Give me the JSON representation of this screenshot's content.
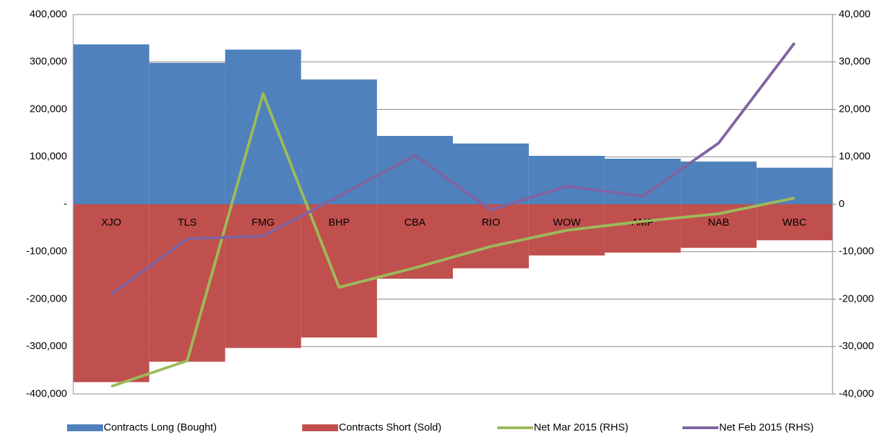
{
  "chart_data": {
    "type": "bar",
    "categories": [
      "XJO",
      "TLS",
      "FMG",
      "BHP",
      "CBA",
      "RIO",
      "WOW",
      "AMP",
      "NAB",
      "WBC"
    ],
    "series": [
      {
        "name": "Contracts Long (Bought)",
        "type": "bar",
        "color": "#4f81bd",
        "values": [
          337000,
          298000,
          326000,
          263000,
          144000,
          128000,
          102000,
          96000,
          90000,
          77000
        ]
      },
      {
        "name": "Contracts Short (Sold)",
        "type": "bar",
        "color": "#c0504d",
        "values": [
          -375000,
          -332000,
          -303000,
          -281000,
          -157000,
          -135000,
          -108000,
          -102000,
          -92000,
          -76000
        ]
      },
      {
        "name": "Net Mar 2015 (RHS)",
        "type": "line",
        "axis": "y2",
        "color": "#9bbb59",
        "values": [
          -38400,
          -33000,
          23300,
          -17500,
          -13400,
          -8900,
          -5500,
          -3600,
          -2000,
          1300
        ]
      },
      {
        "name": "Net Feb 2015 (RHS)",
        "type": "line",
        "axis": "y2",
        "color": "#8064a2",
        "values": [
          -19000,
          -7300,
          -6700,
          1700,
          10300,
          -1200,
          3800,
          1700,
          12900,
          34000
        ]
      }
    ],
    "ylim": [
      -400000,
      400000
    ],
    "yticks": [
      {
        "value": -400000,
        "label": "-400,000"
      },
      {
        "value": -300000,
        "label": "-300,000"
      },
      {
        "value": -200000,
        "label": "-200,000"
      },
      {
        "value": -100000,
        "label": "-100,000"
      },
      {
        "value": 0,
        "label": "-"
      },
      {
        "value": 100000,
        "label": "100,000"
      },
      {
        "value": 200000,
        "label": "200,000"
      },
      {
        "value": 300000,
        "label": "300,000"
      },
      {
        "value": 400000,
        "label": "400,000"
      }
    ],
    "y2lim": [
      -40000,
      40000
    ],
    "y2ticks": [
      {
        "value": -40000,
        "label": "-40,000"
      },
      {
        "value": -30000,
        "label": "-30,000"
      },
      {
        "value": -20000,
        "label": "-20,000"
      },
      {
        "value": -10000,
        "label": "-10,000"
      },
      0,
      {
        "value": 10000,
        "label": "10,000"
      },
      {
        "value": 20000,
        "label": "20,000"
      },
      {
        "value": 30000,
        "label": "30,000"
      },
      {
        "value": 40000,
        "label": "40,000"
      }
    ],
    "grid": true,
    "legend": "bottom"
  }
}
